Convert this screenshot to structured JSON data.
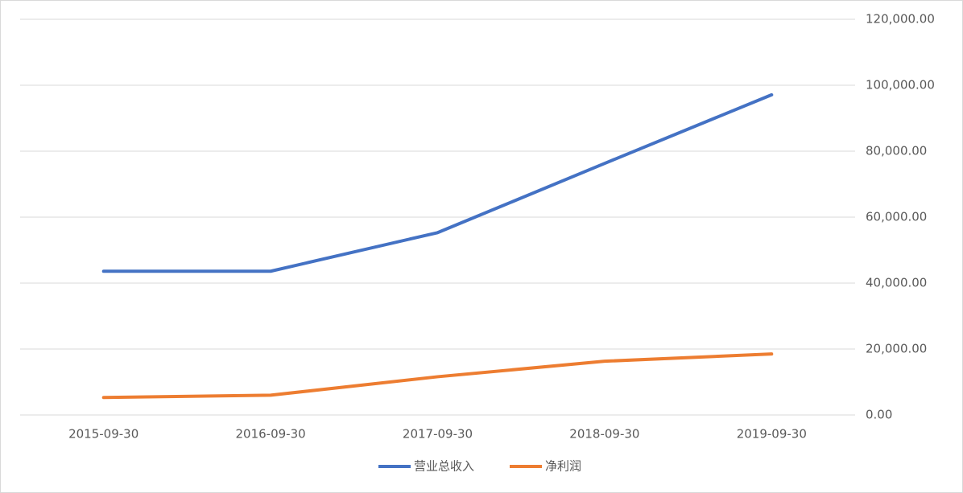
{
  "chart_data": {
    "type": "line",
    "categories": [
      "2015-09-30",
      "2016-09-30",
      "2017-09-30",
      "2018-09-30",
      "2019-09-30"
    ],
    "series": [
      {
        "name": "营业总收入",
        "color": "#4472c4",
        "values": [
          43600,
          43600,
          55300,
          76300,
          97100
        ]
      },
      {
        "name": "净利润",
        "color": "#ed7d31",
        "values": [
          5300,
          6000,
          11600,
          16300,
          18500
        ]
      }
    ],
    "ylim": [
      0,
      120000
    ],
    "yticks": [
      {
        "value": 0,
        "label": "0.00"
      },
      {
        "value": 20000,
        "label": "20,000.00"
      },
      {
        "value": 40000,
        "label": "40,000.00"
      },
      {
        "value": 60000,
        "label": "60,000.00"
      },
      {
        "value": 80000,
        "label": "80,000.00"
      },
      {
        "value": 100000,
        "label": "100,000.00"
      },
      {
        "value": 120000,
        "label": "120,000.00"
      }
    ],
    "grid": true
  }
}
